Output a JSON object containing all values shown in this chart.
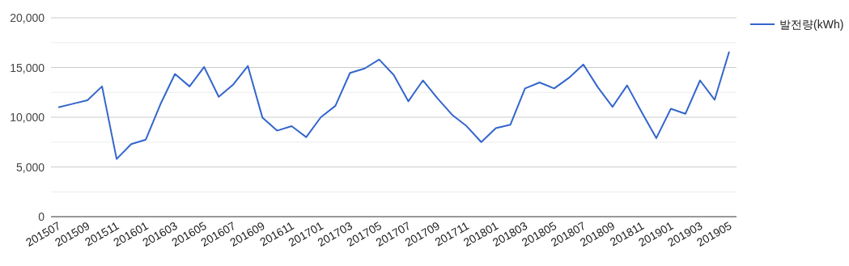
{
  "chart_data": {
    "type": "line",
    "categories": [
      "201507",
      null,
      "201509",
      null,
      "201511",
      null,
      "201601",
      null,
      "201603",
      null,
      "201605",
      null,
      "201607",
      null,
      "201609",
      null,
      "201611",
      null,
      "201701",
      null,
      "201703",
      null,
      "201705",
      null,
      "201707",
      null,
      "201709",
      null,
      "201711",
      null,
      "201801",
      null,
      "201803",
      null,
      "201805",
      null,
      "201807",
      null,
      "201809",
      null,
      "201811",
      null,
      "201901",
      null,
      "201903",
      null,
      "201905"
    ],
    "series": [
      {
        "name": "발전량(kWh)",
        "color": "#3366cc",
        "values": [
          11000,
          11350,
          11700,
          13100,
          5800,
          7300,
          7750,
          11300,
          14350,
          13100,
          15050,
          12050,
          13300,
          15150,
          9950,
          8650,
          9100,
          8000,
          10000,
          11150,
          14450,
          14900,
          15800,
          14250,
          11600,
          13700,
          11900,
          10250,
          9100,
          7500,
          8900,
          9250,
          12900,
          13500,
          12900,
          13950,
          15300,
          13000,
          11050,
          13200,
          10500,
          7900,
          10850,
          10350,
          13700,
          11750,
          16600
        ]
      }
    ],
    "ylim": [
      0,
      20000
    ],
    "yticks": [
      {
        "value": 0,
        "label": "0"
      },
      {
        "value": 2500,
        "label": null
      },
      {
        "value": 5000,
        "label": "5,000"
      },
      {
        "value": 7500,
        "label": null
      },
      {
        "value": 10000,
        "label": "10,000"
      },
      {
        "value": 12500,
        "label": null
      },
      {
        "value": 15000,
        "label": "15,000"
      },
      {
        "value": 17500,
        "label": null
      },
      {
        "value": 20000,
        "label": "20,000"
      }
    ],
    "grid": "y",
    "legend": "top right",
    "marker": "none",
    "line_style": "solid"
  }
}
